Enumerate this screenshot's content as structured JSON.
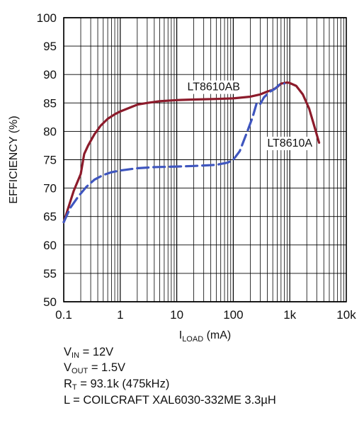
{
  "chart_data": {
    "type": "line",
    "xlabel_main": "I",
    "xlabel_sub": "LOAD",
    "xlabel_unit": " (mA)",
    "ylabel": "EFFICIENCY (%)",
    "x_scale": "log",
    "xlim": [
      0.1,
      10000
    ],
    "ylim": [
      50,
      100
    ],
    "grid": true,
    "x_ticks": [
      {
        "value": 0.1,
        "label": "0.1"
      },
      {
        "value": 1,
        "label": "1"
      },
      {
        "value": 10,
        "label": "10"
      },
      {
        "value": 100,
        "label": "100"
      },
      {
        "value": 1000,
        "label": "1k"
      },
      {
        "value": 10000,
        "label": "10k"
      }
    ],
    "y_ticks": [
      {
        "value": 50,
        "label": "50"
      },
      {
        "value": 55,
        "label": "55"
      },
      {
        "value": 60,
        "label": "60"
      },
      {
        "value": 65,
        "label": "65"
      },
      {
        "value": 70,
        "label": "70"
      },
      {
        "value": 75,
        "label": "75"
      },
      {
        "value": 80,
        "label": "80"
      },
      {
        "value": 85,
        "label": "85"
      },
      {
        "value": 90,
        "label": "90"
      },
      {
        "value": 95,
        "label": "95"
      },
      {
        "value": 100,
        "label": "100"
      }
    ],
    "series": [
      {
        "name": "LT8610AB",
        "color": "#8c1b2b",
        "dashed": false,
        "points": [
          [
            0.1,
            64
          ],
          [
            0.12,
            66.5
          ],
          [
            0.15,
            69.5
          ],
          [
            0.2,
            72.5
          ],
          [
            0.23,
            76
          ],
          [
            0.27,
            77.5
          ],
          [
            0.35,
            79.5
          ],
          [
            0.45,
            81
          ],
          [
            0.6,
            82.2
          ],
          [
            0.8,
            83
          ],
          [
            1,
            83.5
          ],
          [
            1.5,
            84.2
          ],
          [
            2,
            84.7
          ],
          [
            3,
            85
          ],
          [
            5,
            85.3
          ],
          [
            10,
            85.5
          ],
          [
            20,
            85.6
          ],
          [
            50,
            85.7
          ],
          [
            100,
            85.8
          ],
          [
            200,
            86.1
          ],
          [
            300,
            86.5
          ],
          [
            400,
            87
          ],
          [
            500,
            87.3
          ],
          [
            600,
            87.8
          ],
          [
            700,
            88.4
          ],
          [
            900,
            88.6
          ],
          [
            1000,
            88.5
          ],
          [
            1300,
            88
          ],
          [
            1700,
            86.5
          ],
          [
            2200,
            84
          ],
          [
            2700,
            81
          ],
          [
            3300,
            78
          ]
        ]
      },
      {
        "name": "LT8610A",
        "color": "#3f56bf",
        "dashed": true,
        "points": [
          [
            0.1,
            64
          ],
          [
            0.13,
            66.5
          ],
          [
            0.18,
            68.5
          ],
          [
            0.25,
            70.2
          ],
          [
            0.35,
            71.5
          ],
          [
            0.5,
            72.3
          ],
          [
            0.7,
            72.8
          ],
          [
            1,
            73.1
          ],
          [
            2,
            73.5
          ],
          [
            4,
            73.7
          ],
          [
            10,
            73.8
          ],
          [
            20,
            73.9
          ],
          [
            50,
            74.1
          ],
          [
            80,
            74.5
          ],
          [
            100,
            75
          ],
          [
            130,
            76.5
          ],
          [
            170,
            79.5
          ],
          [
            220,
            82.5
          ],
          [
            260,
            85
          ],
          [
            300,
            84.8
          ],
          [
            350,
            86
          ],
          [
            450,
            87
          ],
          [
            550,
            87.5
          ],
          [
            650,
            88.2
          ],
          [
            800,
            88.4
          ]
        ]
      }
    ],
    "annotations": [
      {
        "text": "LT8610AB",
        "x": 45,
        "y": 87.2
      },
      {
        "text": "LT8610A",
        "x": 1000,
        "y": 77.3
      }
    ]
  },
  "notes": [
    {
      "main": "V",
      "sub": "IN",
      "rest": " = 12V"
    },
    {
      "main": "V",
      "sub": "OUT",
      "rest": " = 1.5V"
    },
    {
      "main": "R",
      "sub": "T",
      "rest": " = 93.1k (475kHz)"
    },
    {
      "main": "L = COILCRAFT XAL6030-332ME 3.3µH",
      "sub": "",
      "rest": ""
    }
  ],
  "colors": {
    "grid": "#000000",
    "text": "#111111"
  }
}
